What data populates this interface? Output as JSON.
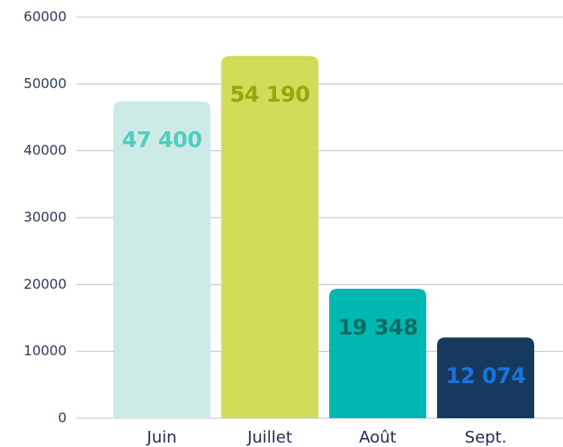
{
  "chart_data": {
    "type": "bar",
    "categories": [
      "Juin",
      "Juillet",
      "Août",
      "Sept."
    ],
    "values": [
      47400,
      54190,
      19348,
      12074
    ],
    "value_labels": [
      "47 400",
      "54 190",
      "19 348",
      "12 074"
    ],
    "colors": [
      "#cdebe6",
      "#d1dc58",
      "#00b8b0",
      "#153a5e"
    ],
    "label_colors": [
      "#4fcdc0",
      "#9aa60f",
      "#0f6c66",
      "#1a73d9"
    ],
    "ylim": [
      0,
      60000
    ],
    "yticks": [
      0,
      10000,
      20000,
      30000,
      40000,
      50000,
      60000
    ],
    "grid": true
  }
}
